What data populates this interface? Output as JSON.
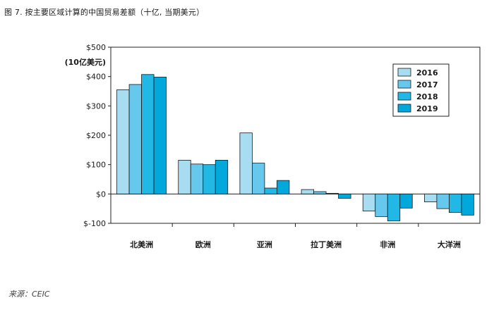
{
  "figure": {
    "title": "图 7. 按主要区域计算的中国贸易差额（十亿, 当期美元）",
    "source": "来源：CEIC"
  },
  "chart_data": {
    "type": "bar",
    "categories": [
      "北美洲",
      "欧洲",
      "亚洲",
      "拉丁美洲",
      "非洲",
      "大洋洲"
    ],
    "series": [
      {
        "name": "2016",
        "color": "#a8dcf0",
        "values": [
          355,
          115,
          208,
          15,
          -58,
          -27
        ]
      },
      {
        "name": "2017",
        "color": "#66c8ec",
        "values": [
          373,
          102,
          105,
          8,
          -77,
          -50
        ]
      },
      {
        "name": "2018",
        "color": "#22b8e6",
        "values": [
          407,
          100,
          20,
          2,
          -92,
          -63
        ]
      },
      {
        "name": "2019",
        "color": "#00a8dc",
        "values": [
          398,
          115,
          46,
          -15,
          -48,
          -72
        ]
      }
    ],
    "ylim": [
      -100,
      500
    ],
    "yticks": [
      -100,
      0,
      100,
      200,
      300,
      400,
      500
    ],
    "ytick_labels": [
      "$-100",
      "$0",
      "$100",
      "$200",
      "$300",
      "$400",
      "$500"
    ],
    "ylabel": "(10亿美元)",
    "legend_position": "top-right",
    "grid": false
  }
}
